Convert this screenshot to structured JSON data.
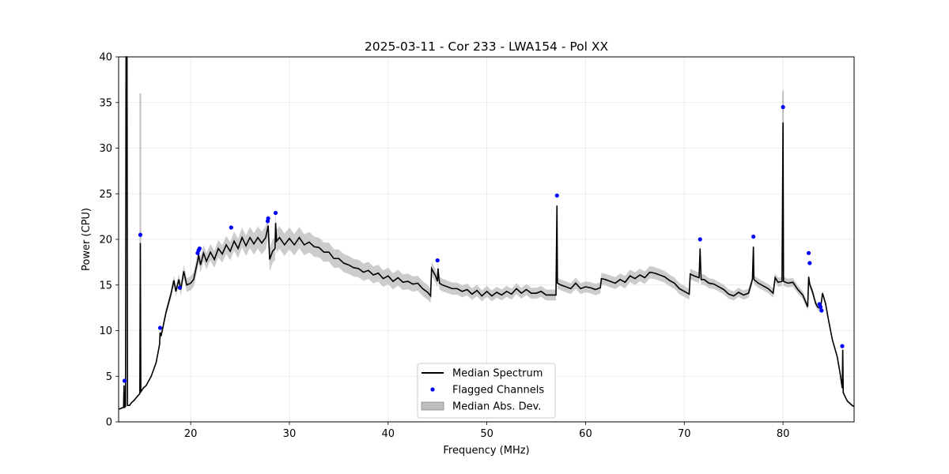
{
  "chart_data": {
    "type": "line",
    "title": "2025-03-11 - Cor 233 - LWA154 - Pol XX",
    "xlabel": "Frequency (MHz)",
    "ylabel": "Power (CPU)",
    "xlim": [
      12.7,
      87.2
    ],
    "ylim": [
      0,
      40
    ],
    "xticks": [
      20,
      30,
      40,
      50,
      60,
      70,
      80
    ],
    "yticks": [
      0,
      5,
      10,
      15,
      20,
      25,
      30,
      35,
      40
    ],
    "grid": true,
    "legend_position": "lower center",
    "colors": {
      "median": "#000000",
      "flagged": "#0000ff",
      "mad": "#bfbfbf"
    },
    "series": [
      {
        "name": "Median Spectrum",
        "points": [
          [
            12.75,
            1.4
          ],
          [
            13.0,
            1.5
          ],
          [
            13.2,
            1.6
          ],
          [
            13.25,
            4.0
          ],
          [
            13.3,
            1.6
          ],
          [
            13.4,
            1.7
          ],
          [
            13.45,
            40.0
          ],
          [
            13.55,
            40.0
          ],
          [
            13.6,
            1.8
          ],
          [
            13.8,
            1.8
          ],
          [
            14.0,
            2.1
          ],
          [
            14.3,
            2.4
          ],
          [
            14.6,
            2.8
          ],
          [
            14.85,
            3.1
          ],
          [
            14.9,
            19.6
          ],
          [
            14.95,
            3.3
          ],
          [
            15.2,
            3.7
          ],
          [
            15.5,
            4.0
          ],
          [
            16.0,
            5.0
          ],
          [
            16.5,
            6.5
          ],
          [
            16.85,
            8.5
          ],
          [
            16.9,
            9.8
          ],
          [
            17.0,
            9.4
          ],
          [
            17.5,
            12.0
          ],
          [
            18.0,
            14.0
          ],
          [
            18.3,
            15.5
          ],
          [
            18.5,
            14.3
          ],
          [
            18.8,
            15.6
          ],
          [
            19.0,
            14.5
          ],
          [
            19.3,
            16.5
          ],
          [
            19.6,
            15.0
          ],
          [
            20.0,
            15.2
          ],
          [
            20.3,
            15.6
          ],
          [
            20.7,
            17.6
          ],
          [
            20.8,
            18.3
          ],
          [
            21.0,
            17.2
          ],
          [
            21.3,
            18.5
          ],
          [
            21.6,
            17.6
          ],
          [
            22.0,
            18.6
          ],
          [
            22.4,
            17.8
          ],
          [
            22.8,
            19.0
          ],
          [
            23.2,
            18.4
          ],
          [
            23.6,
            19.4
          ],
          [
            24.0,
            18.7
          ],
          [
            24.4,
            19.8
          ],
          [
            24.8,
            19.0
          ],
          [
            25.2,
            20.2
          ],
          [
            25.6,
            19.3
          ],
          [
            26.0,
            20.2
          ],
          [
            26.4,
            19.5
          ],
          [
            26.8,
            20.2
          ],
          [
            27.2,
            19.6
          ],
          [
            27.6,
            20.2
          ],
          [
            27.85,
            21.5
          ],
          [
            28.0,
            17.8
          ],
          [
            28.3,
            18.7
          ],
          [
            28.55,
            19.0
          ],
          [
            28.6,
            21.8
          ],
          [
            28.7,
            19.8
          ],
          [
            29.0,
            20.2
          ],
          [
            29.5,
            19.4
          ],
          [
            30.0,
            20.1
          ],
          [
            30.5,
            19.4
          ],
          [
            31.0,
            20.2
          ],
          [
            31.5,
            19.4
          ],
          [
            32.0,
            19.7
          ],
          [
            32.5,
            19.2
          ],
          [
            33.0,
            19.1
          ],
          [
            33.5,
            18.6
          ],
          [
            34.0,
            18.6
          ],
          [
            34.5,
            17.9
          ],
          [
            35.0,
            17.9
          ],
          [
            35.5,
            17.4
          ],
          [
            36.0,
            17.2
          ],
          [
            36.5,
            16.9
          ],
          [
            37.0,
            16.8
          ],
          [
            37.5,
            16.4
          ],
          [
            38.0,
            16.6
          ],
          [
            38.5,
            16.1
          ],
          [
            39.0,
            16.3
          ],
          [
            39.5,
            15.7
          ],
          [
            40.0,
            16.0
          ],
          [
            40.5,
            15.4
          ],
          [
            41.0,
            15.8
          ],
          [
            41.5,
            15.3
          ],
          [
            42.0,
            15.4
          ],
          [
            42.5,
            15.1
          ],
          [
            43.0,
            15.2
          ],
          [
            43.5,
            14.6
          ],
          [
            44.0,
            14.2
          ],
          [
            44.3,
            13.8
          ],
          [
            44.4,
            16.8
          ],
          [
            44.8,
            16.0
          ],
          [
            45.0,
            15.4
          ],
          [
            45.05,
            16.8
          ],
          [
            45.2,
            15.2
          ],
          [
            45.5,
            15.0
          ],
          [
            46.0,
            14.8
          ],
          [
            46.5,
            14.6
          ],
          [
            47.0,
            14.6
          ],
          [
            47.5,
            14.3
          ],
          [
            48.0,
            14.5
          ],
          [
            48.5,
            14.0
          ],
          [
            49.0,
            14.4
          ],
          [
            49.5,
            13.8
          ],
          [
            50.0,
            14.3
          ],
          [
            50.5,
            13.8
          ],
          [
            51.0,
            14.2
          ],
          [
            51.5,
            13.9
          ],
          [
            52.0,
            14.3
          ],
          [
            52.5,
            14.0
          ],
          [
            53.0,
            14.6
          ],
          [
            53.5,
            14.1
          ],
          [
            54.0,
            14.5
          ],
          [
            54.5,
            14.1
          ],
          [
            55.0,
            14.1
          ],
          [
            55.5,
            14.3
          ],
          [
            56.0,
            13.9
          ],
          [
            56.5,
            13.9
          ],
          [
            57.0,
            13.9
          ],
          [
            57.1,
            23.7
          ],
          [
            57.15,
            15.2
          ],
          [
            57.5,
            15.0
          ],
          [
            58.0,
            14.8
          ],
          [
            58.5,
            14.6
          ],
          [
            59.0,
            15.2
          ],
          [
            59.5,
            14.6
          ],
          [
            60.0,
            14.8
          ],
          [
            60.5,
            14.7
          ],
          [
            61.0,
            14.5
          ],
          [
            61.5,
            14.7
          ],
          [
            61.6,
            15.7
          ],
          [
            62.0,
            15.6
          ],
          [
            62.5,
            15.4
          ],
          [
            63.0,
            15.2
          ],
          [
            63.5,
            15.6
          ],
          [
            64.0,
            15.3
          ],
          [
            64.5,
            16.0
          ],
          [
            65.0,
            15.7
          ],
          [
            65.5,
            16.1
          ],
          [
            66.0,
            15.8
          ],
          [
            66.5,
            16.4
          ],
          [
            67.0,
            16.3
          ],
          [
            67.5,
            16.1
          ],
          [
            68.0,
            15.9
          ],
          [
            68.5,
            15.5
          ],
          [
            69.0,
            15.2
          ],
          [
            69.5,
            14.6
          ],
          [
            70.0,
            14.3
          ],
          [
            70.5,
            14.0
          ],
          [
            70.6,
            16.2
          ],
          [
            71.0,
            16.0
          ],
          [
            71.5,
            15.8
          ],
          [
            71.6,
            19.0
          ],
          [
            71.7,
            15.6
          ],
          [
            72.0,
            15.6
          ],
          [
            72.5,
            15.2
          ],
          [
            73.0,
            15.1
          ],
          [
            73.5,
            14.8
          ],
          [
            74.0,
            14.5
          ],
          [
            74.5,
            14.0
          ],
          [
            75.0,
            13.8
          ],
          [
            75.5,
            14.2
          ],
          [
            76.0,
            13.9
          ],
          [
            76.5,
            14.1
          ],
          [
            76.9,
            15.6
          ],
          [
            77.0,
            19.2
          ],
          [
            77.05,
            15.6
          ],
          [
            77.5,
            15.2
          ],
          [
            78.0,
            14.9
          ],
          [
            78.5,
            14.6
          ],
          [
            79.0,
            14.1
          ],
          [
            79.2,
            15.8
          ],
          [
            79.5,
            15.3
          ],
          [
            79.9,
            15.4
          ],
          [
            80.0,
            32.8
          ],
          [
            80.05,
            15.4
          ],
          [
            80.5,
            15.2
          ],
          [
            81.0,
            15.3
          ],
          [
            81.5,
            14.5
          ],
          [
            82.0,
            13.9
          ],
          [
            82.5,
            12.6
          ],
          [
            82.6,
            15.9
          ],
          [
            82.7,
            15.1
          ],
          [
            83.0,
            14.2
          ],
          [
            83.3,
            13.0
          ],
          [
            83.5,
            12.6
          ],
          [
            83.8,
            12.4
          ],
          [
            84.0,
            14.1
          ],
          [
            84.3,
            13.0
          ],
          [
            84.6,
            11.2
          ],
          [
            85.0,
            9.0
          ],
          [
            85.5,
            7.1
          ],
          [
            85.8,
            5.2
          ],
          [
            86.0,
            3.7
          ],
          [
            86.05,
            7.9
          ],
          [
            86.1,
            3.2
          ],
          [
            86.5,
            2.3
          ],
          [
            87.0,
            1.8
          ],
          [
            87.2,
            1.7
          ]
        ]
      }
    ],
    "mad_band": {
      "name": "Median Abs. Dev.",
      "half_width_points": [
        [
          12.7,
          0.05
        ],
        [
          16.0,
          0.1
        ],
        [
          18.0,
          0.5
        ],
        [
          20.0,
          0.8
        ],
        [
          24.0,
          1.0
        ],
        [
          28.0,
          1.3
        ],
        [
          30.0,
          1.2
        ],
        [
          35.0,
          1.0
        ],
        [
          40.0,
          0.9
        ],
        [
          44.0,
          0.8
        ],
        [
          45.0,
          0.7
        ],
        [
          50.0,
          0.6
        ],
        [
          57.0,
          0.6
        ],
        [
          60.0,
          0.6
        ],
        [
          65.0,
          0.7
        ],
        [
          70.0,
          0.6
        ],
        [
          75.0,
          0.5
        ],
        [
          80.0,
          0.5
        ],
        [
          83.0,
          0.4
        ],
        [
          85.0,
          0.2
        ],
        [
          87.2,
          0.1
        ]
      ],
      "spikes": [
        [
          14.9,
          16.0,
          36.0
        ],
        [
          80.0,
          30.0,
          36.3
        ]
      ]
    },
    "flagged_channels": {
      "name": "Flagged Channels",
      "points": [
        [
          13.3,
          4.5
        ],
        [
          14.9,
          20.5
        ],
        [
          16.9,
          10.3
        ],
        [
          18.9,
          14.7
        ],
        [
          20.7,
          18.5
        ],
        [
          20.8,
          18.8
        ],
        [
          20.9,
          19.0
        ],
        [
          24.1,
          21.3
        ],
        [
          27.8,
          22.0
        ],
        [
          27.85,
          22.3
        ],
        [
          28.6,
          22.9
        ],
        [
          45.0,
          17.7
        ],
        [
          57.1,
          24.8
        ],
        [
          71.6,
          20.0
        ],
        [
          77.0,
          20.3
        ],
        [
          80.0,
          34.5
        ],
        [
          82.6,
          18.5
        ],
        [
          82.7,
          17.4
        ],
        [
          83.7,
          12.9
        ],
        [
          83.8,
          12.6
        ],
        [
          83.9,
          12.2
        ],
        [
          86.0,
          8.3
        ]
      ]
    }
  }
}
